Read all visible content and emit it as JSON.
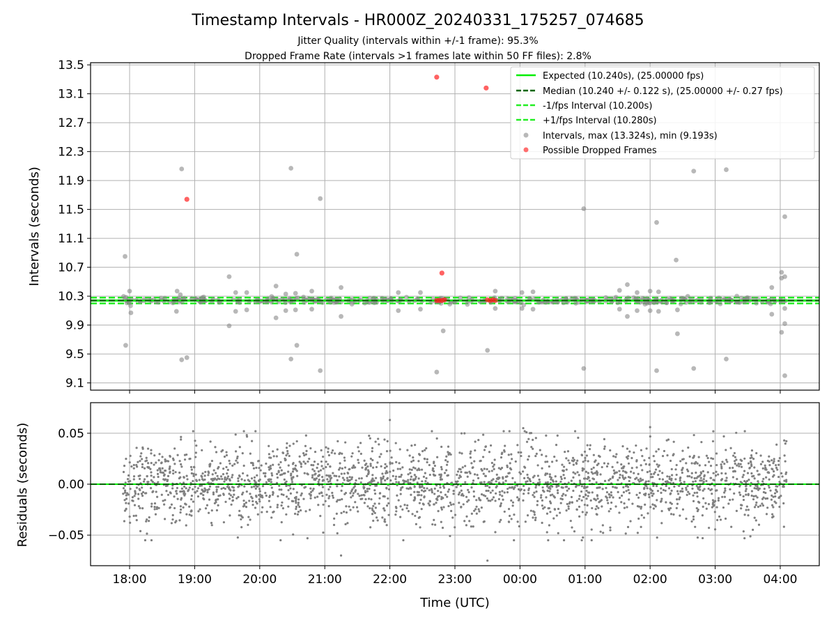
{
  "chart_data": [
    {
      "type": "scatter",
      "title": "Timestamp Intervals - HR000Z_20240331_175257_074685",
      "subtitle_lines": [
        "Jitter Quality (intervals within +/-1 frame): 95.3%",
        "Dropped Frame Rate (intervals >1 frames late within 50 FF files): 2.8%"
      ],
      "xlabel": "",
      "ylabel": "Intervals (seconds)",
      "ylim": [
        9.0,
        13.53
      ],
      "yticks": [
        9.1,
        9.5,
        9.9,
        10.3,
        10.7,
        11.1,
        11.5,
        11.9,
        12.3,
        12.7,
        13.1,
        13.5
      ],
      "ytick_labels": [
        "9.1",
        "9.5",
        "9.9",
        "10.3",
        "10.7",
        "11.1",
        "11.5",
        "11.9",
        "12.3",
        "12.7",
        "13.1",
        "13.5"
      ],
      "grid": true,
      "legend_placement": "top-right",
      "reference_lines": [
        {
          "name": "Expected (10.240s), (25.00000 fps)",
          "y": 10.24,
          "color": "#00ee00",
          "style": "solid"
        },
        {
          "name": "Median (10.240 +/- 0.122 s), (25.00000 +/- 0.27 fps)",
          "y": 10.24,
          "color": "#006400",
          "style": "dashed"
        },
        {
          "name": "-1/fps Interval (10.200s)",
          "y": 10.2,
          "color": "#22ee22",
          "style": "dashed"
        },
        {
          "name": "+1/fps Interval (10.280s)",
          "y": 10.28,
          "color": "#22ee22",
          "style": "dashed"
        }
      ],
      "series": [
        {
          "name": "Intervals, max (13.324s), min (9.193s)",
          "color": "#888888",
          "note_x_units": "hours since 00:00 UTC of first day",
          "points": [
            [
              17.93,
              10.85
            ],
            [
              17.94,
              9.62
            ],
            [
              18.02,
              10.07
            ],
            [
              18.0,
              10.37
            ],
            [
              18.73,
              10.37
            ],
            [
              18.8,
              12.06
            ],
            [
              18.8,
              9.42
            ],
            [
              18.88,
              9.45
            ],
            [
              18.72,
              10.09
            ],
            [
              18.78,
              10.32
            ],
            [
              19.53,
              10.57
            ],
            [
              19.53,
              9.89
            ],
            [
              19.63,
              10.35
            ],
            [
              19.63,
              10.09
            ],
            [
              19.8,
              10.35
            ],
            [
              19.8,
              10.11
            ],
            [
              20.25,
              10.44
            ],
            [
              20.25,
              10.0
            ],
            [
              20.4,
              10.33
            ],
            [
              20.4,
              10.1
            ],
            [
              20.48,
              12.07
            ],
            [
              20.48,
              9.43
            ],
            [
              20.57,
              10.88
            ],
            [
              20.57,
              9.62
            ],
            [
              20.55,
              10.34
            ],
            [
              20.55,
              10.11
            ],
            [
              20.8,
              10.37
            ],
            [
              20.8,
              10.12
            ],
            [
              20.93,
              11.65
            ],
            [
              20.93,
              9.27
            ],
            [
              21.25,
              10.42
            ],
            [
              21.25,
              10.02
            ],
            [
              22.13,
              10.35
            ],
            [
              22.13,
              10.1
            ],
            [
              22.47,
              10.35
            ],
            [
              22.47,
              10.12
            ],
            [
              22.72,
              9.25
            ],
            [
              22.82,
              9.82
            ],
            [
              23.5,
              9.55
            ],
            [
              23.62,
              10.37
            ],
            [
              23.62,
              10.13
            ],
            [
              24.03,
              10.35
            ],
            [
              24.03,
              10.13
            ],
            [
              24.2,
              10.36
            ],
            [
              24.2,
              10.12
            ],
            [
              24.98,
              11.51
            ],
            [
              24.98,
              9.3
            ],
            [
              25.53,
              10.38
            ],
            [
              25.53,
              10.12
            ],
            [
              25.65,
              10.46
            ],
            [
              25.65,
              10.02
            ],
            [
              25.8,
              10.35
            ],
            [
              25.8,
              10.1
            ],
            [
              26.0,
              10.37
            ],
            [
              26.0,
              10.1
            ],
            [
              26.1,
              11.32
            ],
            [
              26.1,
              9.27
            ],
            [
              26.13,
              10.36
            ],
            [
              26.13,
              10.09
            ],
            [
              26.4,
              10.8
            ],
            [
              26.42,
              9.78
            ],
            [
              26.42,
              10.11
            ],
            [
              26.67,
              12.03
            ],
            [
              26.67,
              9.3
            ],
            [
              27.17,
              12.05
            ],
            [
              27.17,
              9.43
            ],
            [
              27.87,
              10.42
            ],
            [
              27.87,
              10.05
            ],
            [
              28.02,
              10.55
            ],
            [
              28.02,
              10.63
            ],
            [
              28.02,
              9.8
            ],
            [
              28.07,
              11.4
            ],
            [
              28.07,
              10.57
            ],
            [
              28.07,
              9.92
            ],
            [
              28.07,
              9.2
            ],
            [
              28.07,
              10.13
            ]
          ],
          "baseline_cluster": {
            "y_center": 10.24,
            "y_spread": 0.06,
            "x_range": [
              17.9,
              28.1
            ]
          }
        },
        {
          "name": "Possible Dropped Frames",
          "color": "#ff2020",
          "points": [
            [
              18.88,
              11.64
            ],
            [
              22.72,
              13.33
            ],
            [
              23.48,
              13.18
            ],
            [
              22.8,
              10.62
            ],
            [
              22.72,
              10.24
            ],
            [
              22.76,
              10.24
            ],
            [
              22.8,
              10.24
            ],
            [
              22.84,
              10.25
            ],
            [
              23.5,
              10.25
            ],
            [
              23.54,
              10.24
            ],
            [
              23.58,
              10.25
            ],
            [
              23.62,
              10.24
            ]
          ]
        }
      ]
    },
    {
      "type": "scatter",
      "title": "",
      "xlabel": "Time (UTC)",
      "ylabel": "Residuals (seconds)",
      "ylim": [
        -0.08,
        0.08
      ],
      "yticks": [
        -0.05,
        0.0,
        0.05
      ],
      "ytick_labels": [
        "−0.05",
        "0.00",
        "0.05"
      ],
      "xlim": [
        17.4,
        28.6
      ],
      "xticks": [
        18,
        19,
        20,
        21,
        22,
        23,
        24,
        25,
        26,
        27,
        28
      ],
      "xtick_labels": [
        "18:00",
        "19:00",
        "20:00",
        "21:00",
        "22:00",
        "23:00",
        "00:00",
        "01:00",
        "02:00",
        "03:00",
        "04:00"
      ],
      "grid": true,
      "reference_lines": [
        {
          "y": 0.0,
          "color": "#00ee00",
          "style": "solid"
        },
        {
          "y": 0.0,
          "color": "#006400",
          "style": "dashed"
        }
      ],
      "series": [
        {
          "name": "",
          "color": "#808080",
          "points_summary": {
            "count": 2400,
            "x_range": [
              17.9,
              28.1
            ],
            "y_std": 0.02,
            "y_max": 0.063,
            "y_min": -0.075
          },
          "notable_points": [
            [
              22.0,
              0.063
            ],
            [
              23.5,
              -0.075
            ],
            [
              21.25,
              -0.07
            ],
            [
              26.0,
              0.056
            ],
            [
              24.05,
              0.055
            ]
          ]
        }
      ]
    }
  ]
}
